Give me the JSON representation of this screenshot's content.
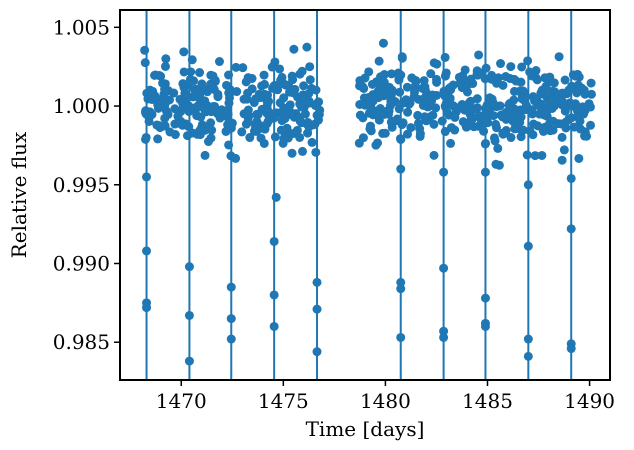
{
  "chart_data": {
    "type": "scatter",
    "xlabel": "Time [days]",
    "ylabel": "Relative flux",
    "xlim": [
      1467.0,
      1491.0
    ],
    "ylim": [
      0.9826,
      1.0061
    ],
    "xticks": [
      1470,
      1475,
      1480,
      1485,
      1490
    ],
    "xtick_labels": [
      "1470",
      "1475",
      "1480",
      "1485",
      "1490"
    ],
    "yticks": [
      0.985,
      0.99,
      0.995,
      1.0,
      1.005
    ],
    "ytick_labels": [
      "0.985",
      "0.990",
      "0.995",
      "1.000",
      "1.005"
    ],
    "grid": false,
    "color": "#1f77b4",
    "transit_times": [
      1468.3,
      1470.4,
      1472.45,
      1474.55,
      1476.65,
      1480.75,
      1482.85,
      1484.9,
      1487.0,
      1489.1
    ],
    "baseline_segments": [
      {
        "x_start": 1468.2,
        "x_end": 1476.8,
        "flux": 1.0,
        "scatter": 0.0013,
        "n": 300
      },
      {
        "x_start": 1478.7,
        "x_end": 1490.1,
        "flux": 1.0,
        "scatter": 0.0013,
        "n": 400
      }
    ],
    "in_transit_points": [
      {
        "x": 1468.3,
        "y": 0.9908
      },
      {
        "x": 1468.3,
        "y": 0.9875
      },
      {
        "x": 1468.3,
        "y": 0.9872
      },
      {
        "x": 1470.4,
        "y": 0.9898
      },
      {
        "x": 1470.4,
        "y": 0.9867
      },
      {
        "x": 1470.4,
        "y": 0.9838
      },
      {
        "x": 1472.45,
        "y": 0.9885
      },
      {
        "x": 1472.45,
        "y": 0.9865
      },
      {
        "x": 1472.45,
        "y": 0.9852
      },
      {
        "x": 1474.55,
        "y": 0.9914
      },
      {
        "x": 1474.55,
        "y": 0.988
      },
      {
        "x": 1474.55,
        "y": 0.986
      },
      {
        "x": 1474.65,
        "y": 0.9942
      },
      {
        "x": 1476.65,
        "y": 0.9888
      },
      {
        "x": 1476.65,
        "y": 0.9871
      },
      {
        "x": 1476.65,
        "y": 0.9844
      },
      {
        "x": 1480.75,
        "y": 0.9888
      },
      {
        "x": 1480.75,
        "y": 0.9884
      },
      {
        "x": 1480.75,
        "y": 0.9853
      },
      {
        "x": 1480.75,
        "y": 0.996
      },
      {
        "x": 1482.85,
        "y": 0.9897
      },
      {
        "x": 1482.85,
        "y": 0.9857
      },
      {
        "x": 1482.85,
        "y": 0.9853
      },
      {
        "x": 1482.85,
        "y": 0.9958
      },
      {
        "x": 1484.9,
        "y": 0.9878
      },
      {
        "x": 1484.9,
        "y": 0.9862
      },
      {
        "x": 1484.9,
        "y": 0.986
      },
      {
        "x": 1484.9,
        "y": 0.9958
      },
      {
        "x": 1487.0,
        "y": 0.9911
      },
      {
        "x": 1487.0,
        "y": 0.9852
      },
      {
        "x": 1487.0,
        "y": 0.9841
      },
      {
        "x": 1487.0,
        "y": 0.995
      },
      {
        "x": 1489.1,
        "y": 0.9922
      },
      {
        "x": 1489.1,
        "y": 0.9849
      },
      {
        "x": 1489.1,
        "y": 0.9846
      },
      {
        "x": 1489.1,
        "y": 0.9954
      }
    ]
  }
}
